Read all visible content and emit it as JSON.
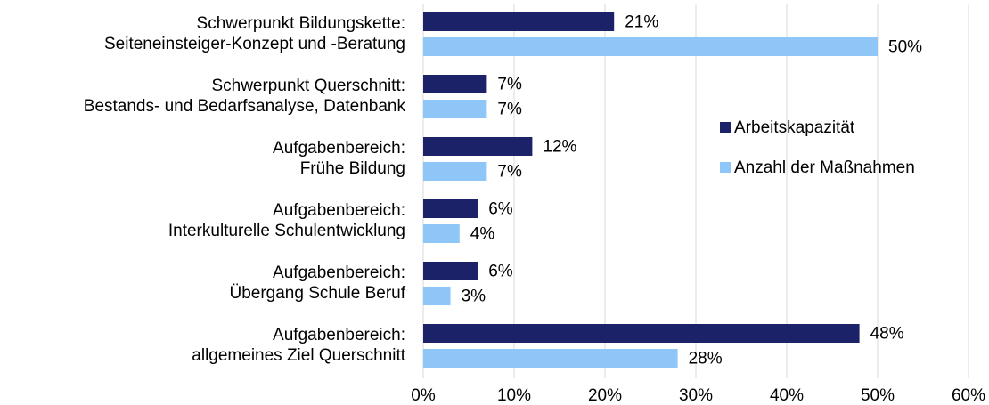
{
  "chart_data": {
    "type": "hbar",
    "categories": [
      "Schwerpunkt Bildungskette:\nSeiteneinsteiger-Konzept und -Beratung",
      "Schwerpunkt Querschnitt:\nBestands- und Bedarfsanalyse, Datenbank",
      "Aufgabenbereich:\nFrühe Bildung",
      "Aufgabenbereich:\nInterkulturelle Schulentwicklung",
      "Aufgabenbereich:\nÜbergang Schule Beruf",
      "Aufgabenbereich:\nallgemeines Ziel Querschnitt"
    ],
    "series": [
      {
        "name": "Arbeitskapazität",
        "color": "#1c2268",
        "values": [
          21,
          7,
          12,
          6,
          6,
          48
        ],
        "value_labels": [
          "21%",
          "7%",
          "12%",
          "6%",
          "6%",
          "48%"
        ]
      },
      {
        "name": "Anzahl der Maßnahmen",
        "color": "#8ec7f7",
        "values": [
          50,
          7,
          7,
          4,
          3,
          28
        ],
        "value_labels": [
          "50%",
          "7%",
          "7%",
          "4%",
          "3%",
          "28%"
        ]
      }
    ],
    "xlim": [
      0,
      60
    ],
    "xticks": [
      {
        "value": 0,
        "label": "0%"
      },
      {
        "value": 10,
        "label": "10%"
      },
      {
        "value": 20,
        "label": "20%"
      },
      {
        "value": 30,
        "label": "30%"
      },
      {
        "value": 40,
        "label": "40%"
      },
      {
        "value": 50,
        "label": "50%"
      },
      {
        "value": 60,
        "label": "60%"
      }
    ],
    "grid": true,
    "legend": "right"
  }
}
